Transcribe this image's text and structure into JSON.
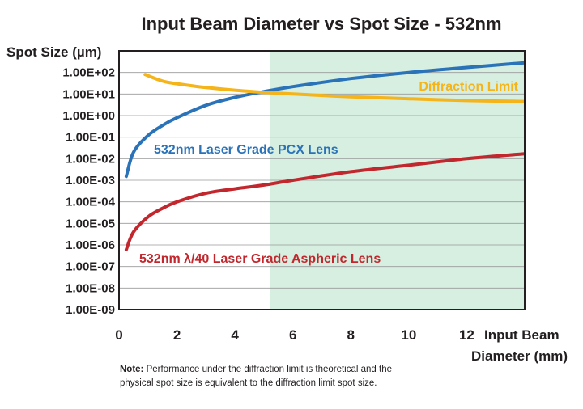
{
  "chart_data": {
    "type": "line",
    "title": "Input Beam Diameter vs Spot Size - 532nm",
    "ylabel": "Spot Size (µm)",
    "xlabel_line1": "Input Beam",
    "xlabel_line2": "Diameter (mm)",
    "y_scale": "log",
    "ylim": [
      1e-09,
      1000
    ],
    "xlim": [
      0,
      14
    ],
    "x_ticks": [
      0,
      2,
      4,
      6,
      8,
      10,
      12
    ],
    "y_ticks": [
      "1.00E+02",
      "1.00E+01",
      "1.00E+00",
      "1.00E-01",
      "1.00E-02",
      "1.00E-03",
      "1.00E-04",
      "1.00E-05",
      "1.00E-06",
      "1.00E-07",
      "1.00E-08",
      "1.00E-09"
    ],
    "grid": true,
    "shaded_region": {
      "x_from": 5.2,
      "x_to": 14,
      "color": "#d6efe1"
    },
    "series": [
      {
        "name": "532nm Laser Grade PCX Lens",
        "color": "#2a73b9",
        "x": [
          0.25,
          0.5,
          1,
          1.5,
          2,
          3,
          4,
          5,
          6,
          8,
          10,
          12,
          14
        ],
        "y": [
          0.0015,
          0.02,
          0.12,
          0.35,
          0.8,
          3,
          7,
          13,
          22,
          52,
          100,
          170,
          280
        ]
      },
      {
        "name": "532nm λ/40 Laser Grade Aspheric Lens",
        "color": "#c1272d",
        "x": [
          0.25,
          0.5,
          1,
          1.5,
          2,
          3,
          4,
          5,
          6,
          8,
          10,
          12,
          14
        ],
        "y": [
          6e-07,
          4e-06,
          2e-05,
          5e-05,
          0.0001,
          0.00025,
          0.0004,
          0.0006,
          0.001,
          0.0025,
          0.005,
          0.01,
          0.017
        ]
      },
      {
        "name": "Diffraction Limit",
        "color": "#f4b41a",
        "x": [
          0.9,
          1.5,
          2,
          3,
          4,
          5,
          6,
          8,
          10,
          12,
          14
        ],
        "y": [
          80,
          40,
          30,
          20,
          15,
          12,
          10,
          7.5,
          6,
          5,
          4.5
        ]
      }
    ]
  },
  "note": {
    "label": "Note:",
    "text": " Performance under the diffraction limit is theoretical and the physical spot size is equivalent to the diffraction limit spot size."
  }
}
